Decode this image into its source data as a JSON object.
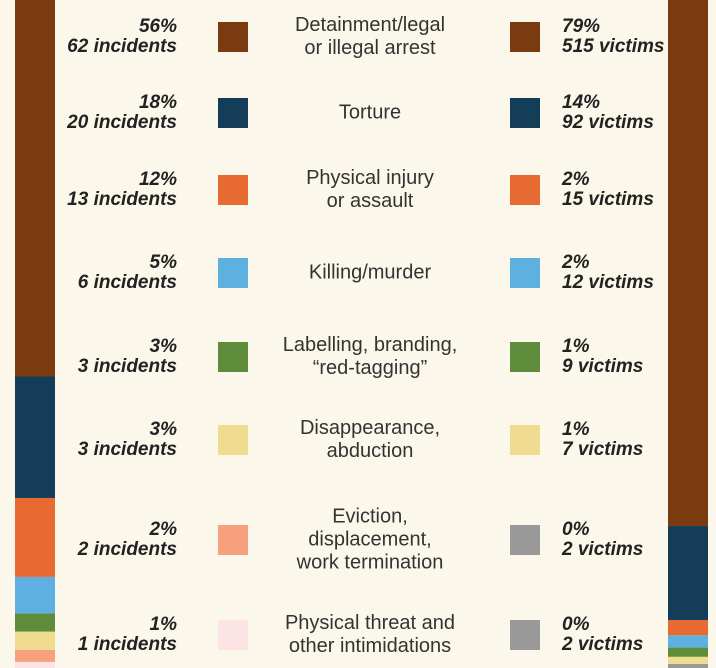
{
  "chart_data": {
    "type": "stacked-columns",
    "categories": [
      [
        "Detainment/legal",
        "or illegal arrest"
      ],
      [
        "Torture"
      ],
      [
        "Physical injury",
        "or assault"
      ],
      [
        "Killing/murder"
      ],
      [
        "Labelling, branding,",
        "“red-tagging”"
      ],
      [
        "Disappearance,",
        "abduction"
      ],
      [
        "Eviction,",
        "displacement,",
        "work termination"
      ],
      [
        "Physical threat and",
        "other intimidations"
      ]
    ],
    "incidents": {
      "values": [
        62,
        20,
        13,
        6,
        3,
        3,
        2,
        1
      ],
      "value_labels": [
        "62 incidents",
        "20 incidents",
        "13 incidents",
        "6 incidents",
        "3 incidents",
        "3 incidents",
        "2 incidents",
        "1 incidents"
      ],
      "percent_values": [
        56,
        18,
        12,
        5,
        3,
        3,
        2,
        1
      ],
      "percent_labels": [
        "56%",
        "18%",
        "12%",
        "5%",
        "3%",
        "3%",
        "2%",
        "1%"
      ],
      "colors": [
        "#7a3b10",
        "#143d5a",
        "#e86a33",
        "#5eb0e0",
        "#5e8c3a",
        "#f0dc90",
        "#f7a07e",
        "#fde4e4"
      ]
    },
    "victims": {
      "values": [
        515,
        92,
        15,
        12,
        9,
        7,
        2,
        2
      ],
      "value_labels": [
        "515 victims",
        "92 victims",
        "15 victims",
        "12 victims",
        "9 victims",
        "7 victims",
        "2 victims",
        "2 victims"
      ],
      "percent_values": [
        79,
        14,
        2,
        2,
        1,
        1,
        0,
        0
      ],
      "percent_labels": [
        "79%",
        "14%",
        "2%",
        "2%",
        "1%",
        "1%",
        "0%",
        "0%"
      ],
      "colors": [
        "#7a3b10",
        "#143d5a",
        "#e86a33",
        "#5eb0e0",
        "#5e8c3a",
        "#f0dc90",
        "#999999",
        "#999999"
      ]
    }
  }
}
